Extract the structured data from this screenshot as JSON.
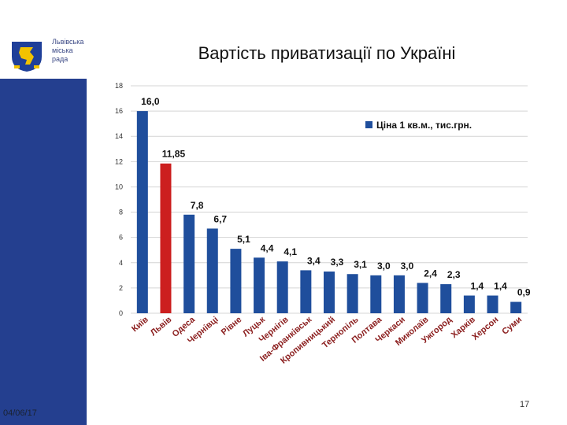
{
  "logo": {
    "lines": [
      "Львівська",
      "міська",
      "рада"
    ],
    "colors": {
      "shield": "#1F3F99",
      "lion": "#F2C200"
    }
  },
  "colors": {
    "sidebar": "#243F8F",
    "bar": "#1F4E9C",
    "highlight": "#CC1F1F"
  },
  "title": "Вартість приватизації по Україні",
  "footer": {
    "date": "04/06/17",
    "page": "17"
  },
  "chart_data": {
    "type": "bar",
    "title": "Вартість приватизації по Україні",
    "categories": [
      "Київ",
      "Львів",
      "Одеса",
      "Чернівці",
      "Рівне",
      "Луцьк",
      "Чернігів",
      "Іва-Франківськ",
      "Кропивницький",
      "Тернопіль",
      "Полтава",
      "Черкаси",
      "Миколаїв",
      "Ужгород",
      "Харків",
      "Херсон",
      "Суми"
    ],
    "value_labels": [
      "16,0",
      "11,85",
      "7,8",
      "6,7",
      "5,1",
      "4,4",
      "4,1",
      "3,4",
      "3,3",
      "3,1",
      "3,0",
      "3,0",
      "2,4",
      "2,3",
      "1,4",
      "1,4",
      "0,9"
    ],
    "series": [
      {
        "name": "Ціна 1 кв.м., тис.грн.",
        "values": [
          16.0,
          11.85,
          7.8,
          6.7,
          5.1,
          4.4,
          4.1,
          3.4,
          3.3,
          3.1,
          3.0,
          3.0,
          2.4,
          2.3,
          1.4,
          1.4,
          0.9
        ]
      }
    ],
    "highlight_index": 1,
    "yticks": [
      "0",
      "2",
      "4",
      "6",
      "8",
      "10",
      "12",
      "14",
      "16",
      "18"
    ],
    "ylim": [
      0,
      18
    ],
    "grid": true,
    "legend_position": "top-right"
  }
}
